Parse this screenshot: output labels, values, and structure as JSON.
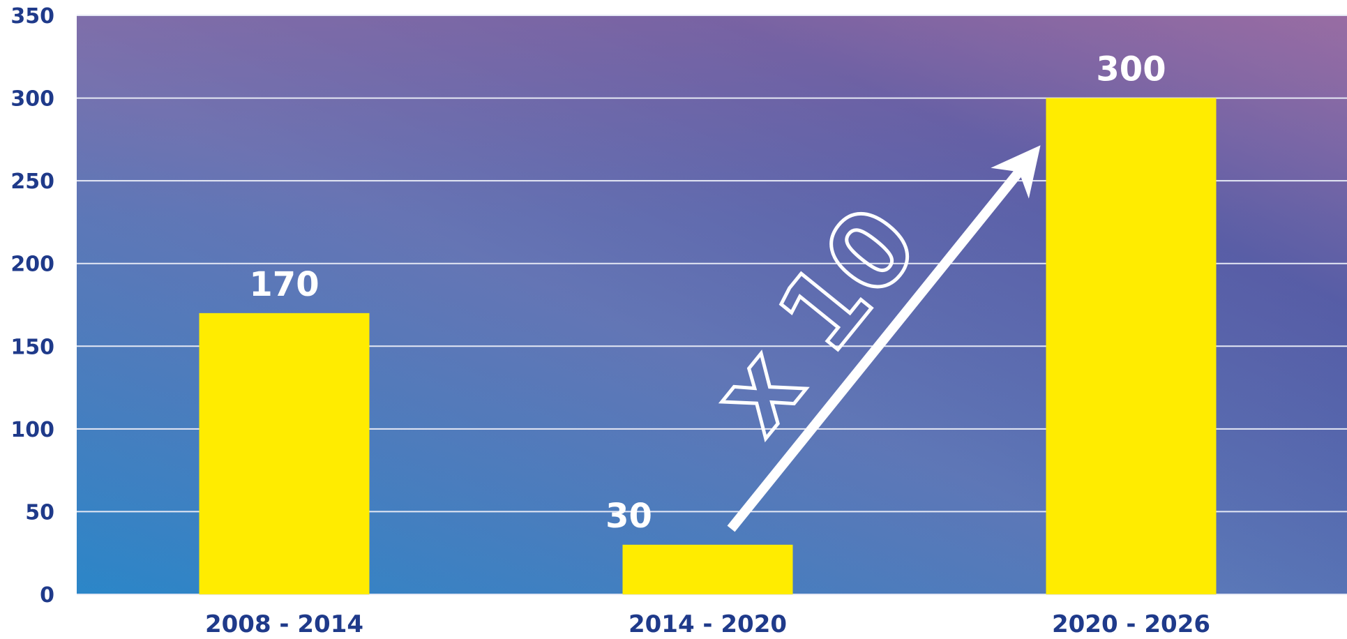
{
  "chart_data": {
    "type": "bar",
    "categories": [
      "2008 - 2014",
      "2014 - 2020",
      "2020 - 2026"
    ],
    "values": [
      170,
      30,
      300
    ],
    "data_labels": [
      "170",
      "30",
      "300"
    ],
    "ylim": [
      0,
      350
    ],
    "yticks": [
      0,
      50,
      100,
      150,
      200,
      250,
      300,
      350
    ],
    "grid": true,
    "annotation": {
      "text": "x 10",
      "from_category": "2014 - 2020",
      "to_category": "2020 - 2026"
    },
    "colors": {
      "bar": "#ffec00",
      "background_start": "#2b86c8",
      "background_mid": "#5a78b8",
      "background_top": "#8f6fa6",
      "background_end": "#4a5aa6",
      "grid": "#e6e9f5",
      "axis_text": "#1f3a8a",
      "label_text": "#ffffff"
    }
  }
}
